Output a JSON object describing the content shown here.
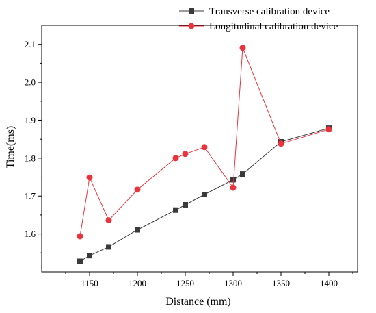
{
  "chart_data": {
    "type": "line",
    "xlabel": "Distance (mm)",
    "ylabel": "Time(ms)",
    "xlim": [
      1100,
      1430
    ],
    "ylim": [
      1.5,
      2.15
    ],
    "x_ticks": [
      1150,
      1200,
      1250,
      1300,
      1350,
      1400
    ],
    "y_ticks": [
      1.6,
      1.7,
      1.8,
      1.9,
      2.0,
      2.1
    ],
    "grid": false,
    "legend_position": "top-right",
    "series": [
      {
        "name": "Transverse calibration device",
        "marker": "square",
        "color": "#3a3a3a",
        "x": [
          1140,
          1150,
          1170,
          1200,
          1240,
          1250,
          1270,
          1300,
          1310,
          1350,
          1400
        ],
        "y": [
          1.528,
          1.543,
          1.566,
          1.611,
          1.663,
          1.677,
          1.704,
          1.743,
          1.758,
          1.843,
          1.879
        ]
      },
      {
        "name": "Longitudinal calibration device",
        "marker": "circle",
        "color": "#e8343c",
        "x": [
          1140,
          1150,
          1170,
          1200,
          1240,
          1250,
          1270,
          1300,
          1310,
          1350,
          1400
        ],
        "y": [
          1.594,
          1.749,
          1.636,
          1.717,
          1.8,
          1.811,
          1.829,
          1.722,
          2.091,
          1.838,
          1.876
        ]
      }
    ]
  }
}
